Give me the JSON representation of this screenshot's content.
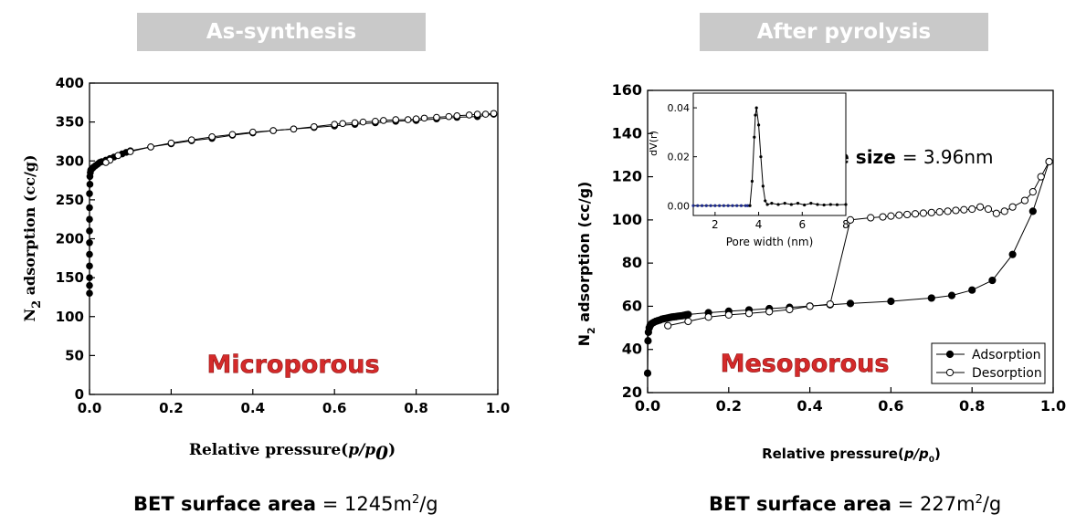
{
  "panels": {
    "left_banner": "As-synthesis",
    "right_banner": "After pyrolysis",
    "left_bet": {
      "label": "BET surface area",
      "eq": "=",
      "value": "1245m",
      "sup": "2",
      "unit": "/g"
    },
    "right_bet": {
      "label": "BET surface area",
      "eq": "=",
      "value": "227m",
      "sup": "2",
      "unit": "/g"
    }
  },
  "chart_data": [
    {
      "type": "scatter",
      "xlabel": "Relative pressure(p/p0)",
      "ylabel": "N2 adsorption (cc/g)",
      "xlim": [
        0,
        1.0
      ],
      "ylim": [
        0,
        400
      ],
      "xticks": [
        0.0,
        0.2,
        0.4,
        0.6,
        0.8,
        1.0
      ],
      "yticks": [
        0,
        50,
        100,
        150,
        200,
        250,
        300,
        350,
        400
      ],
      "annotation": "Microporous",
      "annotation_color": "#d42a2a",
      "grid": false,
      "series": [
        {
          "marker": "filled",
          "x": [
            0.0,
            0.0,
            0.0,
            0.0,
            0.0,
            0.0,
            0.0,
            0.0,
            0.0,
            0.0,
            0.001,
            0.001,
            0.002,
            0.003,
            0.004,
            0.006,
            0.008,
            0.01,
            0.015,
            0.02,
            0.025,
            0.03,
            0.04,
            0.05,
            0.06,
            0.07,
            0.08,
            0.09,
            0.1,
            0.15,
            0.2,
            0.25,
            0.3,
            0.35,
            0.4,
            0.45,
            0.5,
            0.55,
            0.6,
            0.65,
            0.7,
            0.75,
            0.8,
            0.85,
            0.9,
            0.95,
            0.99
          ],
          "y": [
            130,
            140,
            150,
            165,
            180,
            195,
            210,
            225,
            240,
            258,
            270,
            280,
            285,
            288,
            289,
            290,
            291,
            292,
            294,
            296,
            298,
            299,
            301,
            303,
            305,
            307,
            309,
            311,
            313,
            318,
            322,
            326,
            329,
            333,
            336,
            339,
            341,
            343,
            345,
            347,
            349,
            351,
            352,
            354,
            356,
            357,
            360
          ]
        },
        {
          "marker": "open",
          "x": [
            0.99,
            0.97,
            0.95,
            0.93,
            0.9,
            0.88,
            0.85,
            0.82,
            0.8,
            0.78,
            0.75,
            0.72,
            0.7,
            0.67,
            0.65,
            0.62,
            0.6,
            0.55,
            0.5,
            0.45,
            0.4,
            0.35,
            0.3,
            0.25,
            0.2,
            0.15,
            0.1,
            0.07,
            0.05,
            0.04
          ],
          "y": [
            361,
            360,
            360,
            359,
            358,
            357,
            356,
            355,
            354,
            353,
            353,
            352,
            351,
            350,
            349,
            348,
            347,
            344,
            341,
            339,
            337,
            334,
            331,
            327,
            323,
            318,
            312,
            307,
            301,
            298
          ]
        }
      ]
    },
    {
      "type": "scatter",
      "xlabel": "Relative pressure(p/p0)",
      "ylabel": "N2 adsorption (cc/g)",
      "xlim": [
        0,
        1.0
      ],
      "ylim": [
        20,
        160
      ],
      "xticks": [
        0.0,
        0.2,
        0.4,
        0.6,
        0.8,
        1.0
      ],
      "yticks": [
        20,
        40,
        60,
        80,
        100,
        120,
        140,
        160
      ],
      "annotation": "Mesoporous",
      "annotation_color": "#d42a2a",
      "pore_size_label": "Pore size",
      "pore_size_value": "= 3.96nm",
      "legend_position": "bottom-right",
      "grid": false,
      "series": [
        {
          "name": "Adsorption",
          "marker": "filled",
          "x": [
            0.0,
            0.001,
            0.002,
            0.004,
            0.006,
            0.008,
            0.01,
            0.015,
            0.02,
            0.025,
            0.03,
            0.035,
            0.04,
            0.045,
            0.05,
            0.055,
            0.06,
            0.065,
            0.07,
            0.075,
            0.08,
            0.085,
            0.09,
            0.095,
            0.1,
            0.15,
            0.2,
            0.25,
            0.3,
            0.35,
            0.4,
            0.45,
            0.5,
            0.6,
            0.7,
            0.75,
            0.8,
            0.85,
            0.9,
            0.95,
            0.99
          ],
          "y": [
            29,
            44,
            48,
            50,
            51,
            51.5,
            52,
            52.5,
            53,
            53.3,
            53.6,
            54,
            54.2,
            54.4,
            54.6,
            54.8,
            55,
            55.1,
            55.2,
            55.4,
            55.5,
            55.6,
            55.8,
            56,
            56.2,
            57,
            57.7,
            58.3,
            58.9,
            59.5,
            60.1,
            60.7,
            61.3,
            62.3,
            63.8,
            65,
            67.5,
            72,
            84,
            104,
            127
          ]
        },
        {
          "name": "Desorption",
          "marker": "open",
          "x": [
            0.99,
            0.97,
            0.95,
            0.93,
            0.9,
            0.88,
            0.86,
            0.84,
            0.82,
            0.8,
            0.78,
            0.76,
            0.74,
            0.72,
            0.7,
            0.68,
            0.66,
            0.64,
            0.62,
            0.6,
            0.58,
            0.55,
            0.5,
            0.45,
            0.4,
            0.35,
            0.3,
            0.25,
            0.2,
            0.15,
            0.1,
            0.05
          ],
          "y": [
            127,
            120,
            113,
            109,
            106,
            104,
            103,
            105,
            106,
            105,
            104.7,
            104.4,
            104,
            103.7,
            103.4,
            103.1,
            102.8,
            102.5,
            102.2,
            101.8,
            101.4,
            101,
            100,
            61,
            60,
            58.5,
            57.5,
            56.7,
            56,
            55,
            53,
            51
          ]
        }
      ],
      "inset": {
        "type": "line",
        "xlabel": "Pore width (nm)",
        "ylabel": "dV(r)",
        "xlim": [
          1,
          8
        ],
        "ylim": [
          -0.004,
          0.046
        ],
        "xticks": [
          2,
          4,
          6,
          8
        ],
        "yticks": [
          0.0,
          0.02,
          0.04
        ],
        "x": [
          1.0,
          1.2,
          1.4,
          1.6,
          1.8,
          2.0,
          2.2,
          2.4,
          2.6,
          2.8,
          3.0,
          3.2,
          3.4,
          3.5,
          3.6,
          3.7,
          3.8,
          3.85,
          3.9,
          4.0,
          4.1,
          4.2,
          4.3,
          4.4,
          4.6,
          4.9,
          5.2,
          5.5,
          5.8,
          6.1,
          6.4,
          6.7,
          7.0,
          7.3,
          7.6,
          8.0
        ],
        "y": [
          0,
          0,
          0,
          0,
          0,
          0,
          0,
          0,
          0,
          0,
          0,
          0,
          0,
          0,
          0,
          0.01,
          0.028,
          0.037,
          0.04,
          0.033,
          0.02,
          0.008,
          0.002,
          0.0005,
          0.001,
          0.0005,
          0.001,
          0.0005,
          0.001,
          0.0003,
          0.001,
          0.0005,
          0.0003,
          0.0005,
          0.0004,
          0.0005
        ]
      }
    }
  ]
}
